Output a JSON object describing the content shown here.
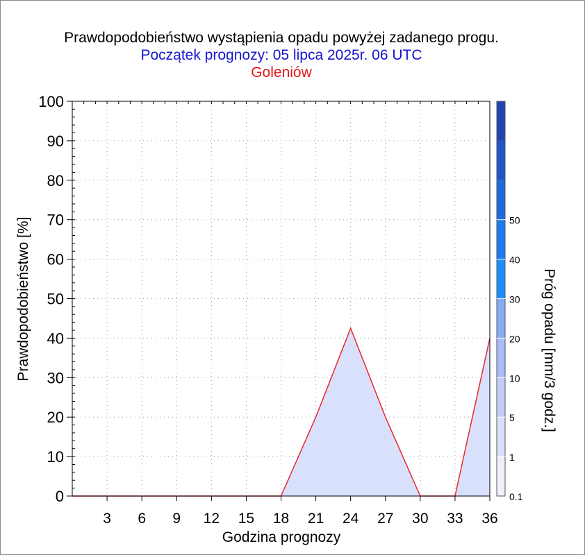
{
  "header": {
    "title": "Prawdopodobieństwo wystąpienia opadu powyżej zadanego progu.",
    "forecast_start": "Początek prognozy: 05 lipca 2025r. 06 UTC",
    "location": "Goleniów"
  },
  "colors": {
    "title": "#000000",
    "forecast_start": "#1515d0",
    "location": "#e01a1a",
    "series_line": "#e8282d",
    "series_fill": "#d9e0fb",
    "grid": "#9a9a9a"
  },
  "chart_data": {
    "type": "area",
    "title": "Prawdopodobieństwo wystąpienia opadu powyżej zadanego progu.",
    "xlabel": "Godzina prognozy",
    "ylabel": "Prawdopodobieństwo [%]",
    "xlim": [
      0,
      36
    ],
    "ylim": [
      0,
      100
    ],
    "xticks": [
      3,
      6,
      9,
      12,
      15,
      18,
      21,
      24,
      27,
      30,
      33,
      36
    ],
    "yticks": [
      0,
      10,
      20,
      30,
      40,
      50,
      60,
      70,
      80,
      90,
      100
    ],
    "grid": true,
    "series": [
      {
        "threshold": "0.1",
        "x": [
          0,
          3,
          6,
          9,
          12,
          15,
          18,
          21,
          24,
          27,
          30,
          33,
          36
        ],
        "y": [
          0,
          0,
          0,
          0,
          0,
          0,
          0,
          20,
          42.5,
          20,
          0,
          0,
          40
        ]
      }
    ],
    "colorbar": {
      "label": "Próg opadu [mm/3 godz.]",
      "tick_labels": [
        "0.1",
        "1",
        "5",
        "10",
        "20",
        "30",
        "40",
        "50"
      ],
      "colors": [
        "#eef0fd",
        "#d9e0fb",
        "#c2cef8",
        "#a9bcf5",
        "#86aef2",
        "#1a90ff",
        "#1c7cf0",
        "#1f69e0",
        "#2055c8",
        "#1f45b0"
      ]
    }
  }
}
